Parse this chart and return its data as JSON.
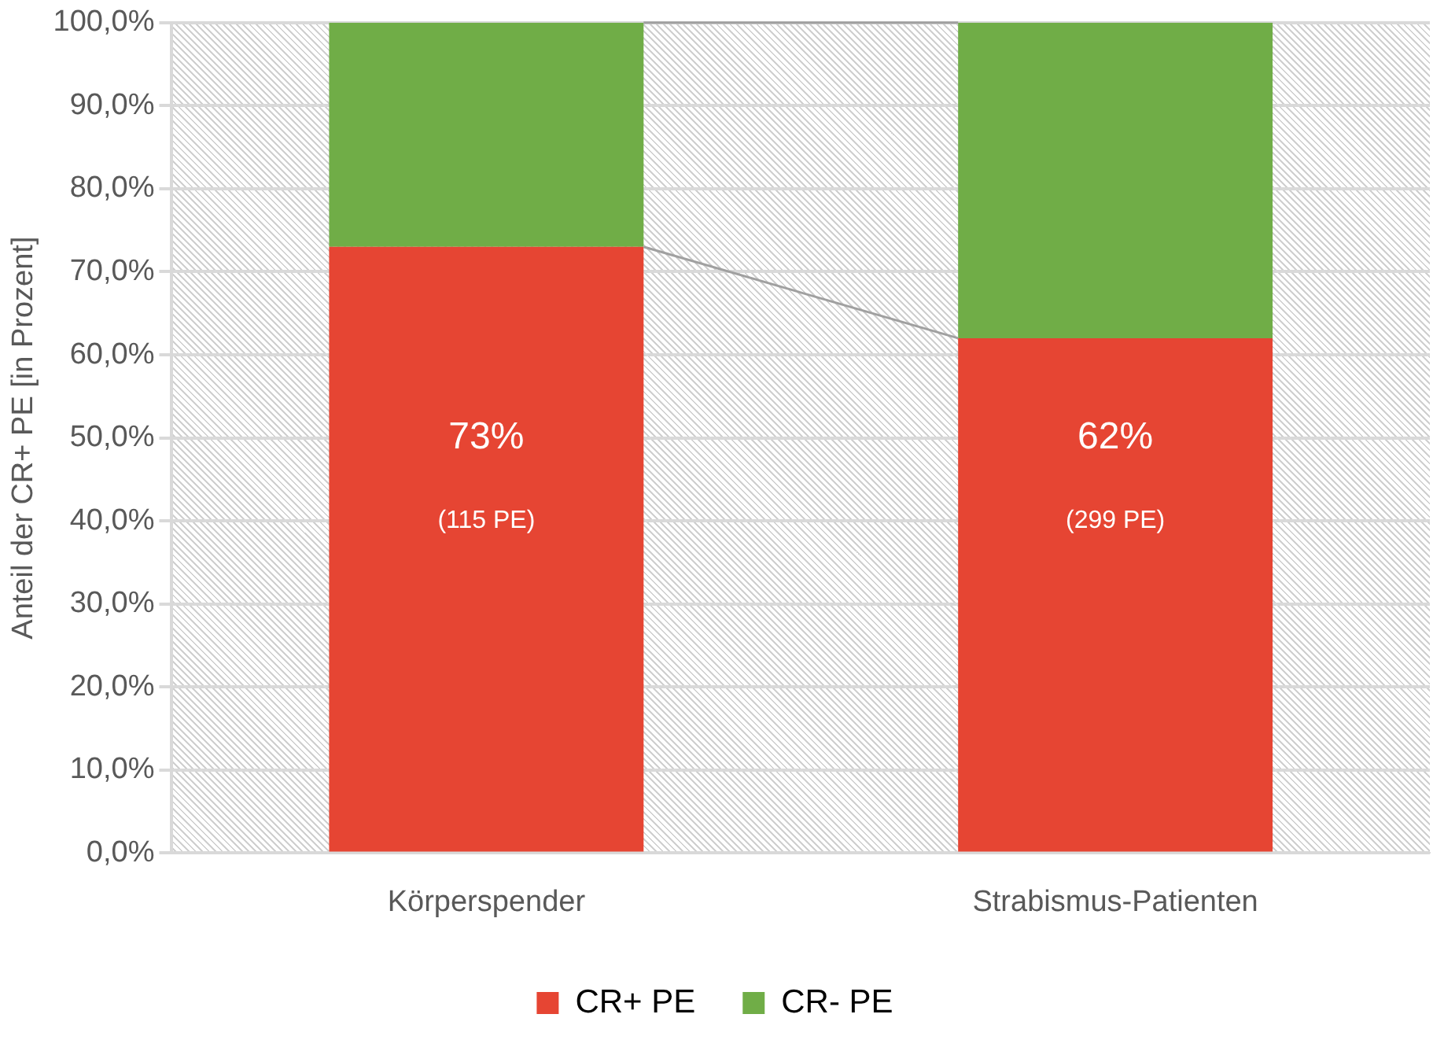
{
  "chart_data": {
    "type": "bar",
    "stacked": true,
    "ylabel": "Anteil der CR+ PE [in Prozent]",
    "categories": [
      "Körperspender",
      "Strabismus-Patienten"
    ],
    "series": [
      {
        "name": "CR+ PE",
        "color": "#e64533",
        "values": [
          73,
          62
        ],
        "value_labels": [
          "73%",
          "62%"
        ]
      },
      {
        "name": "CR- PE",
        "color": "#70ad47",
        "values": [
          27,
          38
        ]
      }
    ],
    "annotations": [
      "(115 PE)",
      "(299 PE)"
    ],
    "ylim": [
      0,
      100
    ],
    "yticks": [
      {
        "value": 0,
        "label": "0,0%"
      },
      {
        "value": 10,
        "label": "10,0%"
      },
      {
        "value": 20,
        "label": "20,0%"
      },
      {
        "value": 30,
        "label": "30,0%"
      },
      {
        "value": 40,
        "label": "40,0%"
      },
      {
        "value": 50,
        "label": "50,0%"
      },
      {
        "value": 60,
        "label": "60,0%"
      },
      {
        "value": 70,
        "label": "70,0%"
      },
      {
        "value": 80,
        "label": "80,0%"
      },
      {
        "value": 90,
        "label": "90,0%"
      },
      {
        "value": 100,
        "label": "100,0%"
      }
    ],
    "grid": "y",
    "legend": "bottom"
  }
}
